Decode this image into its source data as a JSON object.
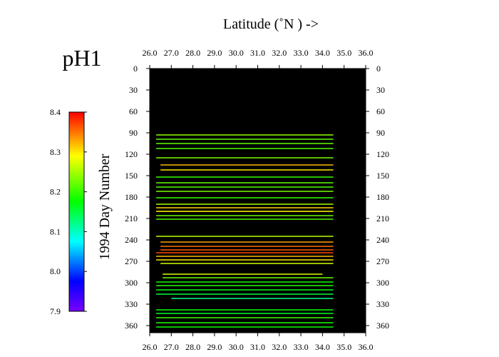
{
  "chart_data": {
    "type": "heatmap",
    "variable_label": "pH1",
    "title": "Latitude  (˚N )  ->",
    "ylabel": "1994  Day Number",
    "xlim": [
      26.0,
      36.0
    ],
    "ylim": [
      0,
      370
    ],
    "x_ticks": [
      "26.0",
      "27.0",
      "28.0",
      "29.0",
      "30.0",
      "31.0",
      "32.0",
      "33.0",
      "34.0",
      "35.0",
      "36.0"
    ],
    "y_ticks": [
      "0",
      "30",
      "60",
      "90",
      "120",
      "150",
      "180",
      "210",
      "240",
      "270",
      "300",
      "330",
      "360"
    ],
    "plot_background": "#000000",
    "colorbar": {
      "min": 7.9,
      "max": 8.4,
      "ticks": [
        "8.4",
        "8.3",
        "8.2",
        "8.1",
        "8.0",
        "7.9"
      ],
      "colors": [
        "#7a00ff",
        "#0000ff",
        "#00ffff",
        "#00ff00",
        "#ffff00",
        "#ff0000"
      ]
    },
    "tracks": [
      {
        "day": 93,
        "x_start": 26.3,
        "x_end": 34.5,
        "ph": 8.24
      },
      {
        "day": 99,
        "x_start": 26.3,
        "x_end": 34.5,
        "ph": 8.22
      },
      {
        "day": 105,
        "x_start": 26.3,
        "x_end": 34.5,
        "ph": 8.22
      },
      {
        "day": 112,
        "x_start": 26.3,
        "x_end": 34.5,
        "ph": 8.21
      },
      {
        "day": 125,
        "x_start": 26.3,
        "x_end": 34.5,
        "ph": 8.23
      },
      {
        "day": 135,
        "x_start": 26.5,
        "x_end": 34.5,
        "ph": 8.32
      },
      {
        "day": 142,
        "x_start": 26.5,
        "x_end": 34.5,
        "ph": 8.3
      },
      {
        "day": 152,
        "x_start": 26.3,
        "x_end": 34.5,
        "ph": 8.2
      },
      {
        "day": 160,
        "x_start": 26.3,
        "x_end": 34.5,
        "ph": 8.22
      },
      {
        "day": 166,
        "x_start": 26.3,
        "x_end": 34.5,
        "ph": 8.21
      },
      {
        "day": 172,
        "x_start": 26.3,
        "x_end": 34.5,
        "ph": 8.23
      },
      {
        "day": 181,
        "x_start": 26.3,
        "x_end": 34.5,
        "ph": 8.2
      },
      {
        "day": 190,
        "x_start": 26.3,
        "x_end": 34.5,
        "ph": 8.25
      },
      {
        "day": 195,
        "x_start": 26.3,
        "x_end": 34.5,
        "ph": 8.31
      },
      {
        "day": 200,
        "x_start": 26.3,
        "x_end": 34.5,
        "ph": 8.29
      },
      {
        "day": 206,
        "x_start": 26.3,
        "x_end": 34.5,
        "ph": 8.22
      },
      {
        "day": 211,
        "x_start": 26.3,
        "x_end": 34.5,
        "ph": 8.21
      },
      {
        "day": 235,
        "x_start": 26.3,
        "x_end": 34.5,
        "ph": 8.26
      },
      {
        "day": 243,
        "x_start": 26.5,
        "x_end": 34.5,
        "ph": 8.33
      },
      {
        "day": 249,
        "x_start": 26.5,
        "x_end": 34.5,
        "ph": 8.35
      },
      {
        "day": 254,
        "x_start": 26.5,
        "x_end": 34.5,
        "ph": 8.36
      },
      {
        "day": 258,
        "x_start": 26.3,
        "x_end": 34.5,
        "ph": 8.37
      },
      {
        "day": 263,
        "x_start": 26.3,
        "x_end": 34.5,
        "ph": 8.32
      },
      {
        "day": 268,
        "x_start": 26.3,
        "x_end": 34.5,
        "ph": 8.3
      },
      {
        "day": 273,
        "x_start": 26.5,
        "x_end": 34.5,
        "ph": 8.27
      },
      {
        "day": 288,
        "x_start": 26.6,
        "x_end": 34.0,
        "ph": 8.27
      },
      {
        "day": 293,
        "x_start": 26.6,
        "x_end": 34.5,
        "ph": 8.22
      },
      {
        "day": 299,
        "x_start": 26.3,
        "x_end": 34.5,
        "ph": 8.18
      },
      {
        "day": 304,
        "x_start": 26.3,
        "x_end": 34.5,
        "ph": 8.19
      },
      {
        "day": 310,
        "x_start": 26.3,
        "x_end": 34.5,
        "ph": 8.17
      },
      {
        "day": 316,
        "x_start": 26.3,
        "x_end": 34.5,
        "ph": 8.15
      },
      {
        "day": 322,
        "x_start": 27.0,
        "x_end": 34.5,
        "ph": 8.12
      },
      {
        "day": 338,
        "x_start": 26.3,
        "x_end": 34.5,
        "ph": 8.18
      },
      {
        "day": 343,
        "x_start": 26.3,
        "x_end": 34.5,
        "ph": 8.16
      },
      {
        "day": 349,
        "x_start": 26.3,
        "x_end": 34.5,
        "ph": 8.2
      },
      {
        "day": 356,
        "x_start": 26.3,
        "x_end": 34.5,
        "ph": 8.19
      },
      {
        "day": 362,
        "x_start": 26.3,
        "x_end": 34.5,
        "ph": 8.18
      }
    ]
  }
}
